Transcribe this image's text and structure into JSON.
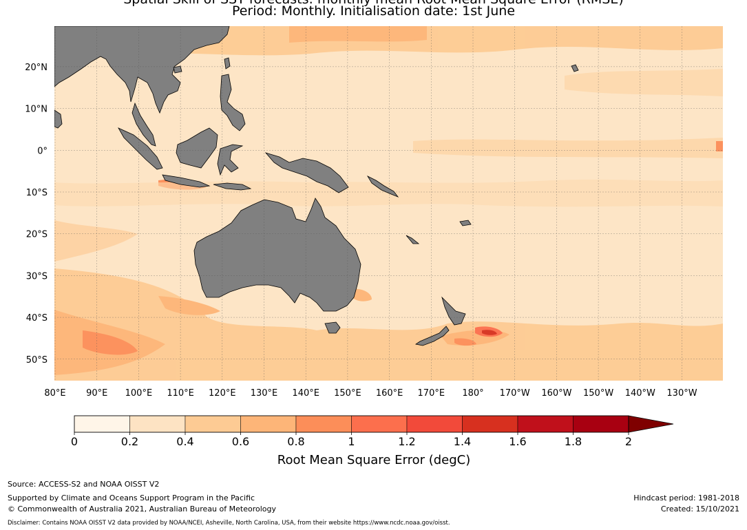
{
  "title": {
    "line1": "Spatial Skill of SST forecasts: monthly mean Root Mean Square Error (RMSE)",
    "line2": "Period: Monthly. Initialisation date: 1st June"
  },
  "map": {
    "longitude_labels": [
      "80°E",
      "90°E",
      "100°E",
      "110°E",
      "120°E",
      "130°E",
      "140°E",
      "150°E",
      "160°E",
      "170°E",
      "180°",
      "170°W",
      "160°W",
      "150°W",
      "140°W",
      "130°W"
    ],
    "latitude_labels": [
      "20°N",
      "10°N",
      "0°",
      "10°S",
      "20°S",
      "30°S",
      "40°S",
      "50°S"
    ],
    "land_color": "#808080",
    "ocean_background_color": "#fde5c6"
  },
  "colorbar": {
    "label": "Root Mean Square Error (degC)",
    "ticks": [
      "0",
      "0.2",
      "0.4",
      "0.6",
      "0.8",
      "1",
      "1.2",
      "1.4",
      "1.6",
      "1.8",
      "2"
    ],
    "colors": [
      "#fff5e8",
      "#fde3c3",
      "#fdcb94",
      "#fdb578",
      "#fc8e59",
      "#fc6f4d",
      "#f24a3a",
      "#d7301f",
      "#c0101b",
      "#a80011"
    ],
    "extend_color": "#7f0000"
  },
  "footer": {
    "source": "Source: ACCESS-S2 and NOAA OISST V2",
    "support": "Supported by Climate and Oceans Support Program in the Pacific",
    "copyright": "© Commonwealth of Australia 2021, Australian Bureau of Meteorology",
    "hindcast": "Hindcast period: 1981-2018",
    "created": "Created: 15/10/2021",
    "disclaimer": "Disclaimer: Contains NOAA OISST V2 data provided by NOAA/NCEI, Asheville, North Carolina, USA, from their website https://www.ncdc.noaa.gov/oisst."
  }
}
